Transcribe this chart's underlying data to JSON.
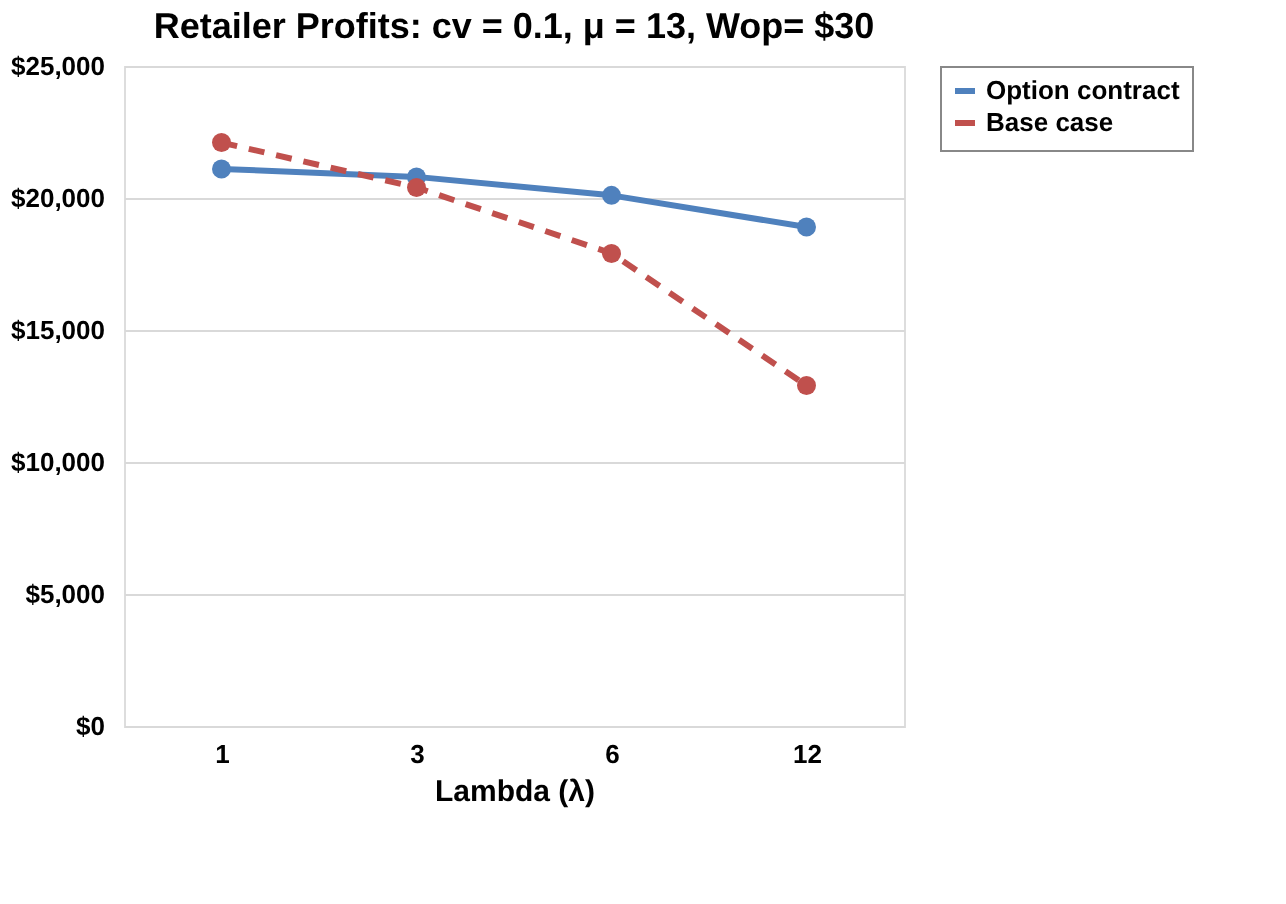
{
  "chart_data": {
    "type": "line",
    "title": "Retailer Profits: cv = 0.1, μ = 13, Wop= $30",
    "xlabel": "Lambda (λ)",
    "categories": [
      "1",
      "3",
      "6",
      "12"
    ],
    "series": [
      {
        "name": "Option contract",
        "color": "#4f81bd",
        "line_style": "solid",
        "values": [
          21100,
          20800,
          20100,
          18900
        ]
      },
      {
        "name": "Base case",
        "color": "#c0504d",
        "line_style": "dashed",
        "values": [
          22100,
          20400,
          17900,
          12900
        ]
      }
    ],
    "ylim": [
      0,
      25000
    ],
    "yticks": [
      {
        "value": 0,
        "label": "$0"
      },
      {
        "value": 5000,
        "label": "$5,000"
      },
      {
        "value": 10000,
        "label": "$10,000"
      },
      {
        "value": 15000,
        "label": "$15,000"
      },
      {
        "value": 20000,
        "label": "$20,000"
      },
      {
        "value": 25000,
        "label": "$25,000"
      }
    ],
    "grid": "y",
    "legend": "right",
    "marker": "circle"
  }
}
